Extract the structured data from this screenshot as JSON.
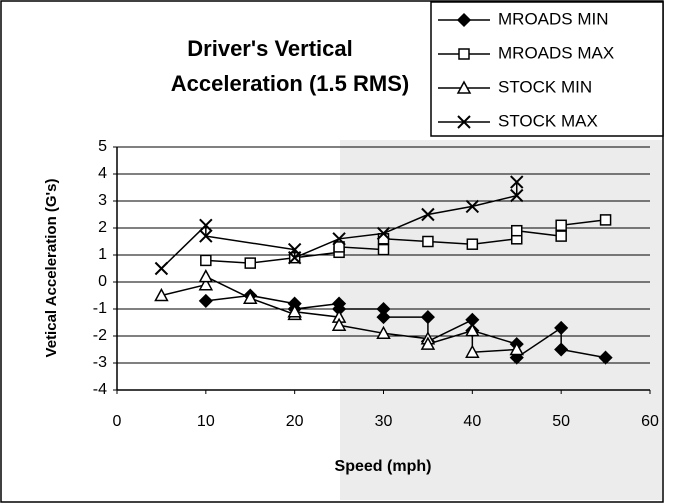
{
  "chart_data": {
    "type": "line",
    "title": [
      "Driver's Vertical",
      "Acceleration (1.5 RMS)"
    ],
    "xlabel": "Speed (mph)",
    "ylabel": "Vetical Acceleration (G's)",
    "xlim": [
      0,
      60
    ],
    "xticks": [
      0,
      10,
      20,
      30,
      40,
      50,
      60
    ],
    "ylim": [
      -4,
      5
    ],
    "yticks": [
      -4,
      -3,
      -2,
      -1,
      0,
      1,
      2,
      3,
      4,
      5
    ],
    "grid": true,
    "legend": "top-right",
    "series": [
      {
        "name": "MROADS MIN",
        "color": "#000000",
        "marker": "diamond",
        "x": [
          10,
          15,
          20,
          20,
          25,
          25,
          30,
          30,
          35,
          35,
          40,
          40,
          45,
          45,
          50,
          50,
          55
        ],
        "values": [
          -0.7,
          -0.5,
          -0.8,
          -1.0,
          -0.8,
          -1.0,
          -1.0,
          -1.3,
          -1.3,
          -2.2,
          -1.4,
          -1.8,
          -2.3,
          -2.8,
          -1.7,
          -2.5,
          -2.8
        ]
      },
      {
        "name": "MROADS MAX",
        "color": "#000000",
        "marker": "square",
        "x": [
          10,
          15,
          20,
          25,
          25,
          30,
          30,
          35,
          40,
          45,
          45,
          50,
          50,
          55
        ],
        "values": [
          0.8,
          0.7,
          0.9,
          1.1,
          1.3,
          1.2,
          1.6,
          1.5,
          1.4,
          1.6,
          1.9,
          1.7,
          2.1,
          2.3
        ]
      },
      {
        "name": "STOCK MIN",
        "color": "#000000",
        "marker": "triangle",
        "x": [
          5,
          10,
          10,
          15,
          20,
          20,
          25,
          25,
          30,
          35,
          35,
          40,
          40,
          45
        ],
        "values": [
          -0.5,
          -0.1,
          0.2,
          -0.6,
          -1.2,
          -1.1,
          -1.3,
          -1.6,
          -1.9,
          -2.1,
          -2.3,
          -1.8,
          -2.6,
          -2.5
        ]
      },
      {
        "name": "STOCK MAX",
        "color": "#000000",
        "marker": "cross",
        "x": [
          5,
          10,
          10,
          20,
          20,
          25,
          30,
          35,
          40,
          45,
          45
        ],
        "values": [
          0.5,
          2.1,
          1.7,
          1.2,
          0.9,
          1.6,
          1.8,
          2.5,
          2.8,
          3.2,
          3.7
        ]
      }
    ]
  }
}
